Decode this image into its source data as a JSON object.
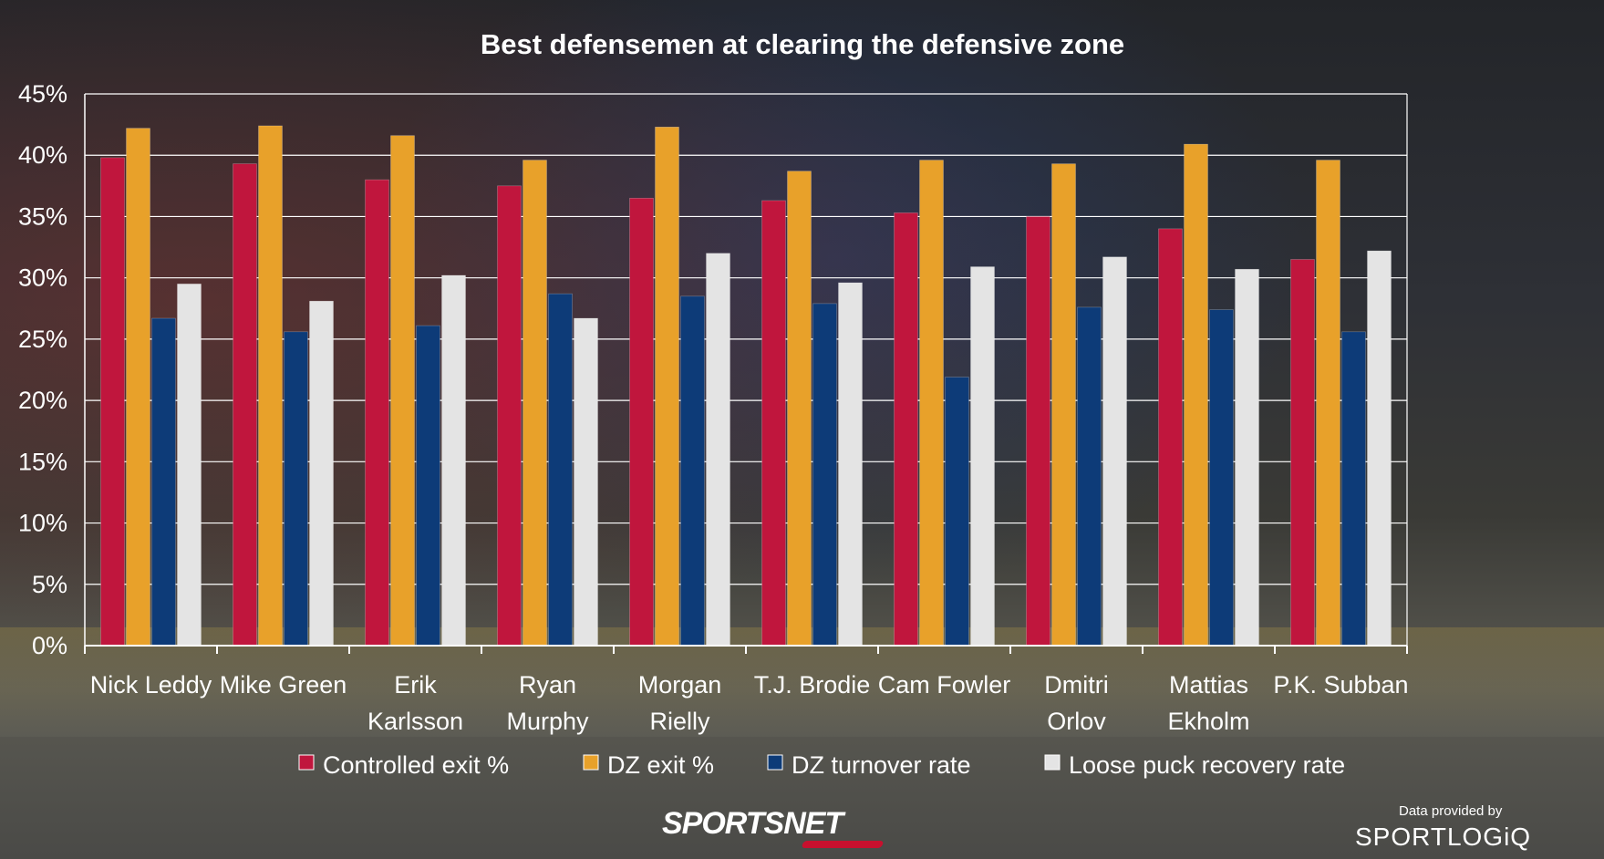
{
  "chart_data": {
    "type": "bar",
    "title": "Best defensemen at clearing the defensive zone",
    "categories": [
      [
        "Nick Leddy"
      ],
      [
        "Mike Green"
      ],
      [
        "Erik",
        "Karlsson"
      ],
      [
        "Ryan",
        "Murphy"
      ],
      [
        "Morgan",
        "Rielly"
      ],
      [
        "T.J. Brodie"
      ],
      [
        "Cam Fowler"
      ],
      [
        "Dmitri",
        "Orlov"
      ],
      [
        "Mattias",
        "Ekholm"
      ],
      [
        "P.K. Subban"
      ]
    ],
    "series": [
      {
        "name": "Controlled exit %",
        "color": "#c0163d",
        "values": [
          39.8,
          39.3,
          38.0,
          37.5,
          36.5,
          36.3,
          35.3,
          35.0,
          34.0,
          31.5
        ]
      },
      {
        "name": "DZ exit %",
        "color": "#e8a12a",
        "values": [
          42.2,
          42.4,
          41.6,
          39.6,
          42.3,
          38.7,
          39.6,
          39.3,
          40.9,
          39.6
        ]
      },
      {
        "name": "DZ turnover rate",
        "color": "#0d3b78",
        "values": [
          26.7,
          25.6,
          26.1,
          28.7,
          28.5,
          27.9,
          21.9,
          27.6,
          27.4,
          25.6
        ]
      },
      {
        "name": "Loose puck recovery rate",
        "color": "#e4e4e4",
        "values": [
          29.5,
          28.1,
          30.2,
          26.7,
          32.0,
          29.6,
          30.9,
          31.7,
          30.7,
          32.2
        ]
      }
    ],
    "yticks": [
      "0%",
      "5%",
      "10%",
      "15%",
      "20%",
      "25%",
      "30%",
      "35%",
      "40%",
      "45%"
    ],
    "ylim": [
      0,
      45
    ],
    "ylabel": "",
    "xlabel": "",
    "grid": true,
    "legend_position": "bottom"
  },
  "branding": {
    "logo_text": "SPORTSNET",
    "credit_label": "Data provided by",
    "credit_brand": "SPORTLOGiQ"
  }
}
